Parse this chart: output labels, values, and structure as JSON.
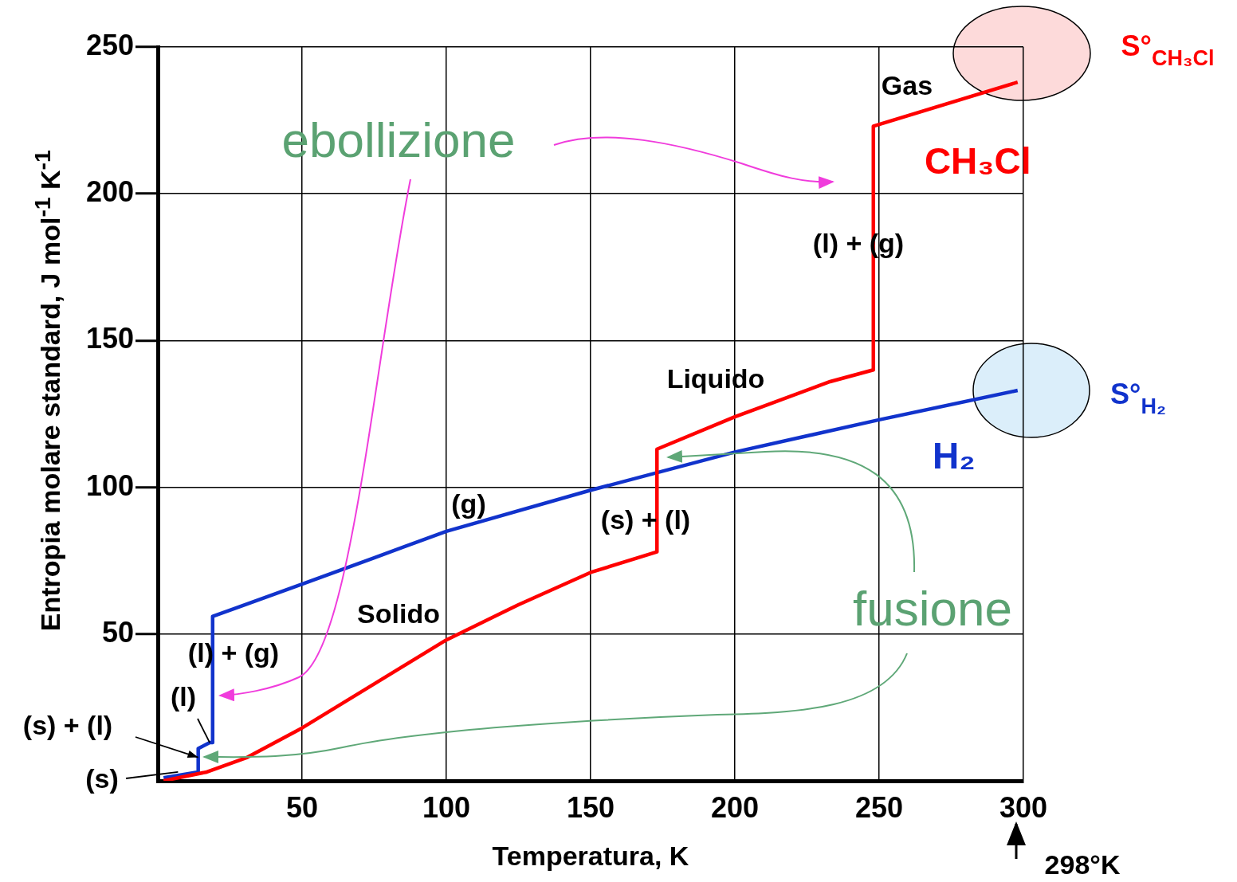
{
  "chart_data": {
    "type": "line",
    "xlabel": "Temperatura, K",
    "ylabel": "Entropia molare standard, J mol$^{-1}$ K$^{-1}$",
    "xlim": [
      0,
      300
    ],
    "ylim": [
      0,
      250
    ],
    "xticks": [
      50,
      100,
      150,
      200,
      250,
      300
    ],
    "yticks": [
      50,
      100,
      150,
      200,
      250
    ],
    "grid": true,
    "legend": false,
    "marker": "none",
    "line_style": "solid",
    "series": [
      {
        "name": "CH₃Cl",
        "color": "#ff0000",
        "x": [
          2,
          17,
          31,
          50,
          75,
          100,
          125,
          150,
          173,
          173,
          200,
          233,
          248,
          248,
          298
        ],
        "values": [
          0,
          3,
          8,
          18,
          33,
          48,
          60,
          71,
          78,
          113,
          124,
          136,
          140,
          223,
          238
        ]
      },
      {
        "name": "H₂",
        "color": "#1133cc",
        "x": [
          2,
          14,
          14,
          18,
          19,
          19,
          50,
          75,
          100,
          150,
          200,
          250,
          298
        ],
        "values": [
          1,
          3,
          11,
          13,
          13,
          56,
          67,
          76,
          85,
          99,
          112,
          123,
          133
        ]
      }
    ],
    "annotations": [
      "Gas",
      "(l) + (g)",
      "Liquido",
      "(s) + (l)",
      "(g)",
      "Solido",
      "(l) + (g)",
      {
        "text": "(l)",
        "x": 18,
        "y": 13
      },
      {
        "text": "(s) + (l)",
        "x": 14,
        "y": 8
      },
      {
        "text": "(s)",
        "x": 7,
        "y": 3
      },
      "ebollizione",
      "fusione",
      "S°$_{CH₃Cl}$",
      "S°$_{H₂}$",
      "298°K"
    ]
  }
}
